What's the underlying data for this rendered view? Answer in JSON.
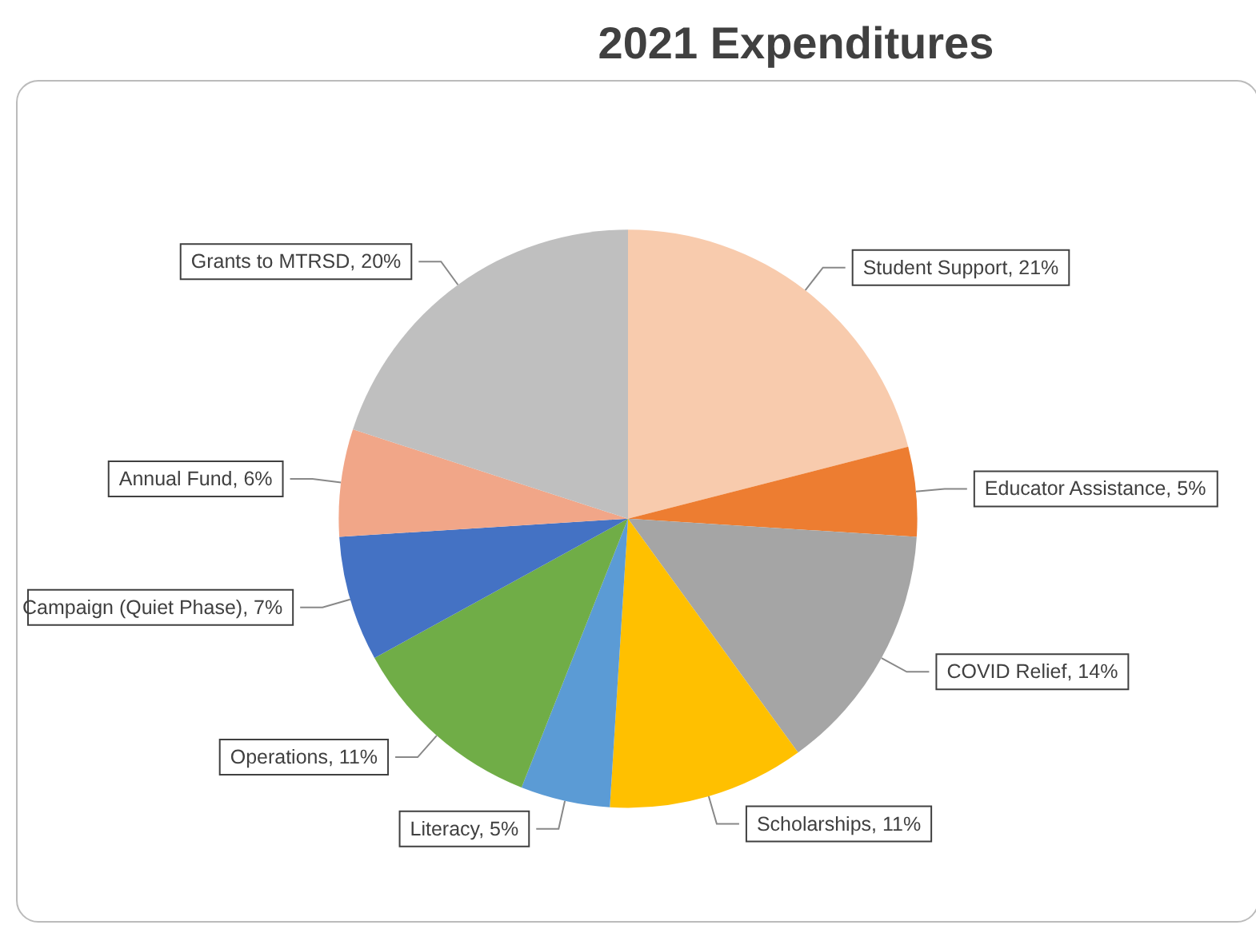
{
  "chart_data": {
    "type": "pie",
    "title": "2021 Expenditures",
    "categories": [
      "Student Support",
      "Educator Assistance",
      "COVID Relief",
      "Scholarships",
      "Literacy",
      "Operations",
      "Campaign (Quiet Phase)",
      "Annual Fund",
      "Grants to MTRSD"
    ],
    "values": [
      21,
      5,
      14,
      11,
      5,
      11,
      7,
      6,
      20
    ],
    "colors": [
      "#f8cbad",
      "#ed7d31",
      "#a5a5a5",
      "#ffc000",
      "#5b9bd5",
      "#70ad47",
      "#4472c4",
      "#f1a688",
      "#bfbfbf"
    ],
    "value_labels": [
      "21%",
      "5%",
      "14%",
      "11%",
      "5%",
      "11%",
      "7%",
      "6%",
      "20%"
    ],
    "legend": false
  }
}
